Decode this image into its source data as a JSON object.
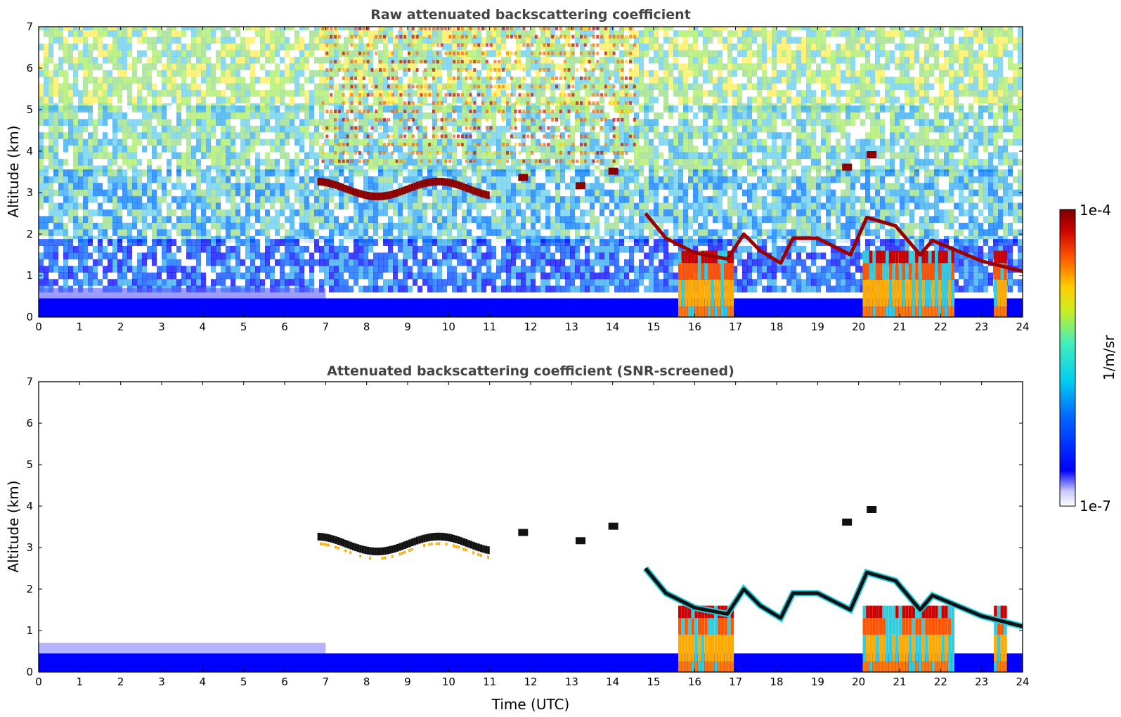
{
  "chart_data": [
    {
      "type": "heatmap",
      "title": "Raw attenuated backscattering coefficient",
      "xlabel": "",
      "ylabel": "Altitude (km)",
      "xlim": [
        0,
        24
      ],
      "ylim": [
        0,
        7
      ],
      "xticks": [
        "0",
        "1",
        "2",
        "3",
        "4",
        "5",
        "6",
        "7",
        "8",
        "9",
        "10",
        "11",
        "12",
        "13",
        "14",
        "15",
        "16",
        "17",
        "18",
        "19",
        "20",
        "21",
        "22",
        "23",
        "24"
      ],
      "yticks": [
        "0",
        "1",
        "2",
        "3",
        "4",
        "5",
        "6",
        "7"
      ],
      "screened": false,
      "features": {
        "aerosol_layer_top_km": 0.45,
        "elevated_layer": {
          "x_start": 6.8,
          "x_end": 11.0,
          "altitude_km": 3.05
        },
        "patches": [
          {
            "x": 11.8,
            "altitude_km": 3.35
          },
          {
            "x": 13.2,
            "altitude_km": 3.15
          },
          {
            "x": 14.0,
            "altitude_km": 3.5
          },
          {
            "x": 19.7,
            "altitude_km": 3.6
          },
          {
            "x": 20.3,
            "altitude_km": 3.9
          }
        ],
        "cloud_base_line": [
          {
            "x": 14.8,
            "altitude_km": 2.5
          },
          {
            "x": 15.3,
            "altitude_km": 1.9
          },
          {
            "x": 16.0,
            "altitude_km": 1.55
          },
          {
            "x": 16.8,
            "altitude_km": 1.4
          },
          {
            "x": 17.2,
            "altitude_km": 2.0
          },
          {
            "x": 17.6,
            "altitude_km": 1.6
          },
          {
            "x": 18.1,
            "altitude_km": 1.3
          },
          {
            "x": 18.4,
            "altitude_km": 1.9
          },
          {
            "x": 19.0,
            "altitude_km": 1.9
          },
          {
            "x": 19.8,
            "altitude_km": 1.5
          },
          {
            "x": 20.2,
            "altitude_km": 2.4
          },
          {
            "x": 20.9,
            "altitude_km": 2.2
          },
          {
            "x": 21.5,
            "altitude_km": 1.5
          },
          {
            "x": 21.8,
            "altitude_km": 1.85
          },
          {
            "x": 23.0,
            "altitude_km": 1.35
          },
          {
            "x": 24.0,
            "altitude_km": 1.1
          }
        ],
        "precip_columns": [
          {
            "x_start": 15.6,
            "x_end": 16.9
          },
          {
            "x_start": 20.1,
            "x_end": 22.3
          },
          {
            "x_start": 23.3,
            "x_end": 23.6
          }
        ]
      }
    },
    {
      "type": "heatmap",
      "title": "Attenuated backscattering coefficient (SNR-screened)",
      "xlabel": "Time (UTC)",
      "ylabel": "Altitude (km)",
      "xlim": [
        0,
        24
      ],
      "ylim": [
        0,
        7
      ],
      "xticks": [
        "0",
        "1",
        "2",
        "3",
        "4",
        "5",
        "6",
        "7",
        "8",
        "9",
        "10",
        "11",
        "12",
        "13",
        "14",
        "15",
        "16",
        "17",
        "18",
        "19",
        "20",
        "21",
        "22",
        "23",
        "24"
      ],
      "yticks": [
        "0",
        "1",
        "2",
        "3",
        "4",
        "5",
        "6",
        "7"
      ],
      "screened": true
    }
  ],
  "colorbar": {
    "label": "1/m/sr",
    "max_label": "1e-4",
    "min_label": "1e-7",
    "colormap": [
      "#ffffff",
      "#0000ff",
      "#00aaff",
      "#22dddd",
      "#aaee44",
      "#ffdd00",
      "#ff7700",
      "#dd1100",
      "#800000"
    ]
  }
}
